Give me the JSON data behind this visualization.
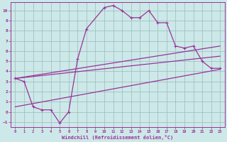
{
  "xlabel": "Windchill (Refroidissement éolien,°C)",
  "background_color": "#cde8e8",
  "line_color": "#993399",
  "grid_color": "#99bbbb",
  "xlim": [
    -0.5,
    23.5
  ],
  "ylim": [
    -1.5,
    10.8
  ],
  "xticks": [
    0,
    1,
    2,
    3,
    4,
    5,
    6,
    7,
    8,
    9,
    10,
    11,
    12,
    13,
    14,
    15,
    16,
    17,
    18,
    19,
    20,
    21,
    22,
    23
  ],
  "yticks": [
    -1,
    0,
    1,
    2,
    3,
    4,
    5,
    6,
    7,
    8,
    9,
    10
  ],
  "curve1_x": [
    0,
    1,
    2,
    3,
    4,
    5,
    6,
    7,
    8,
    10,
    11,
    12,
    13,
    14,
    15,
    16,
    17,
    18,
    19,
    20,
    21,
    22,
    23
  ],
  "curve1_y": [
    3.3,
    3.0,
    0.5,
    0.2,
    0.2,
    -1.1,
    0.0,
    5.2,
    8.2,
    10.3,
    10.5,
    10.0,
    9.3,
    9.3,
    10.0,
    8.8,
    8.8,
    6.5,
    6.3,
    6.5,
    5.0,
    4.3,
    4.3
  ],
  "line2_x": [
    0,
    23
  ],
  "line2_y": [
    3.3,
    6.5
  ],
  "line3_x": [
    0,
    23
  ],
  "line3_y": [
    3.3,
    5.5
  ],
  "line4_x": [
    0,
    23
  ],
  "line4_y": [
    0.5,
    4.2
  ]
}
